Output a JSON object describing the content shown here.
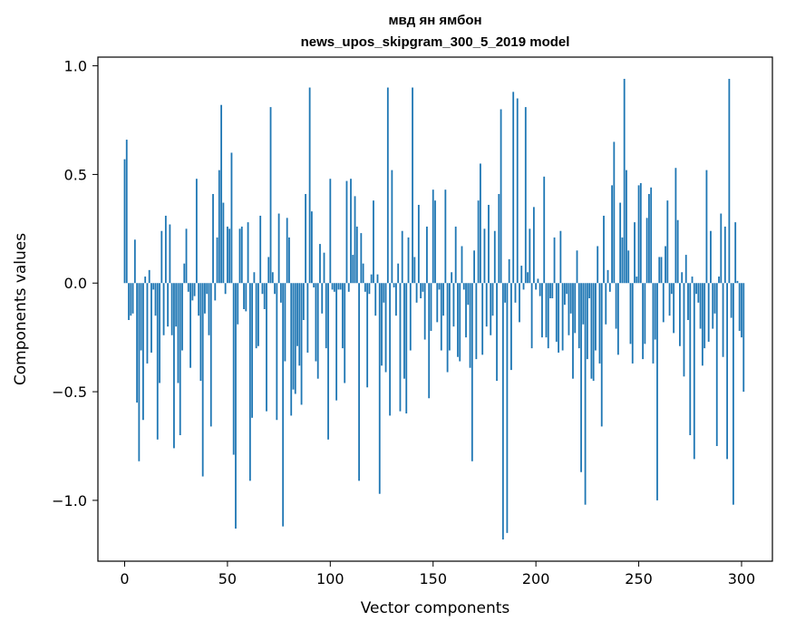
{
  "chart_data": {
    "type": "bar",
    "title_line1": "мвд ян ямбон",
    "title_line2": "news_upos_skipgram_300_5_2019 model",
    "xlabel": "Vector components",
    "ylabel": "Components values",
    "xlim": [
      -13,
      315
    ],
    "ylim": [
      -1.28,
      1.04
    ],
    "xticks": [
      0,
      50,
      100,
      150,
      200,
      250,
      300
    ],
    "xtick_labels": [
      "0",
      "50",
      "100",
      "150",
      "200",
      "250",
      "300"
    ],
    "yticks": [
      -1.0,
      -0.5,
      0.0,
      0.5,
      1.0
    ],
    "ytick_labels": [
      "−1.0",
      "−0.5",
      "0.0",
      "0.5",
      "1.0"
    ],
    "grid": false,
    "bar_color": "#1f77b4",
    "values": [
      0.57,
      0.66,
      -0.17,
      -0.15,
      -0.14,
      0.2,
      -0.55,
      -0.82,
      -0.31,
      -0.63,
      0.03,
      -0.37,
      0.06,
      -0.32,
      -0.03,
      -0.15,
      -0.72,
      -0.46,
      0.24,
      -0.24,
      0.31,
      -0.2,
      0.27,
      -0.24,
      -0.76,
      -0.2,
      -0.46,
      -0.7,
      -0.31,
      0.09,
      0.25,
      -0.04,
      -0.39,
      -0.08,
      -0.06,
      0.48,
      -0.15,
      -0.45,
      -0.89,
      -0.14,
      -0.05,
      -0.24,
      -0.66,
      0.41,
      -0.08,
      0.21,
      0.52,
      0.82,
      0.37,
      -0.05,
      0.26,
      0.25,
      0.6,
      -0.79,
      -1.13,
      -0.19,
      0.25,
      0.26,
      -0.12,
      -0.13,
      0.28,
      -0.91,
      -0.62,
      0.05,
      -0.3,
      -0.29,
      0.31,
      -0.05,
      -0.12,
      -0.59,
      0.12,
      0.81,
      0.05,
      -0.05,
      -0.63,
      0.32,
      -0.09,
      -1.12,
      -0.36,
      0.3,
      0.21,
      -0.61,
      -0.49,
      -0.51,
      -0.29,
      -0.38,
      -0.56,
      -0.17,
      0.41,
      -0.32,
      0.9,
      0.33,
      -0.02,
      -0.36,
      -0.44,
      0.18,
      -0.14,
      0.14,
      -0.3,
      -0.72,
      0.48,
      -0.03,
      -0.04,
      -0.54,
      -0.03,
      -0.03,
      -0.3,
      -0.46,
      0.47,
      -0.04,
      0.48,
      0.13,
      0.4,
      0.26,
      -0.91,
      0.23,
      0.09,
      -0.04,
      -0.48,
      -0.05,
      0.04,
      0.38,
      -0.15,
      0.04,
      -0.97,
      -0.38,
      -0.09,
      -0.41,
      0.9,
      -0.61,
      0.52,
      -0.02,
      -0.15,
      0.09,
      -0.59,
      0.24,
      -0.44,
      -0.6,
      0.21,
      -0.31,
      0.9,
      0.12,
      -0.09,
      0.36,
      -0.07,
      -0.04,
      -0.26,
      0.26,
      -0.53,
      -0.22,
      0.43,
      0.38,
      -0.18,
      -0.03,
      -0.31,
      -0.15,
      0.43,
      -0.41,
      -0.31,
      0.05,
      -0.2,
      0.26,
      -0.34,
      -0.36,
      0.17,
      -0.03,
      -0.25,
      -0.1,
      -0.39,
      -0.82,
      0.15,
      -0.35,
      0.38,
      0.55,
      -0.33,
      0.25,
      -0.2,
      0.36,
      -0.24,
      -0.15,
      0.24,
      -0.45,
      0.41,
      0.8,
      -1.18,
      -0.09,
      -1.15,
      0.11,
      -0.4,
      0.88,
      -0.09,
      0.85,
      -0.18,
      0.08,
      -0.03,
      0.81,
      0.05,
      0.25,
      -0.3,
      0.35,
      -0.03,
      0.02,
      -0.06,
      -0.25,
      0.49,
      -0.25,
      -0.3,
      -0.07,
      -0.07,
      0.21,
      -0.27,
      -0.32,
      0.24,
      -0.31,
      -0.1,
      -0.05,
      -0.24,
      -0.14,
      -0.44,
      -0.23,
      0.15,
      -0.3,
      -0.87,
      -0.19,
      -1.02,
      -0.35,
      -0.07,
      -0.44,
      -0.45,
      -0.31,
      0.17,
      -0.37,
      -0.66,
      0.31,
      -0.19,
      0.06,
      -0.04,
      0.45,
      0.65,
      -0.21,
      -0.33,
      0.37,
      0.21,
      0.94,
      0.52,
      0.15,
      -0.28,
      -0.37,
      0.28,
      0.03,
      0.45,
      0.46,
      -0.35,
      -0.28,
      0.3,
      0.41,
      0.44,
      -0.37,
      -0.26,
      -1.0,
      0.12,
      0.12,
      -0.18,
      0.17,
      0.38,
      -0.15,
      -0.05,
      -0.23,
      0.53,
      0.29,
      -0.29,
      0.05,
      -0.43,
      0.13,
      -0.17,
      -0.7,
      0.03,
      -0.81,
      -0.05,
      -0.09,
      -0.21,
      -0.38,
      -0.3,
      0.52,
      -0.27,
      0.24,
      -0.21,
      -0.14,
      -0.75,
      0.03,
      0.32,
      -0.34,
      0.26,
      -0.81,
      0.94,
      -0.16,
      -1.02,
      0.28,
      0.01,
      -0.22,
      -0.25,
      -0.5
    ]
  }
}
